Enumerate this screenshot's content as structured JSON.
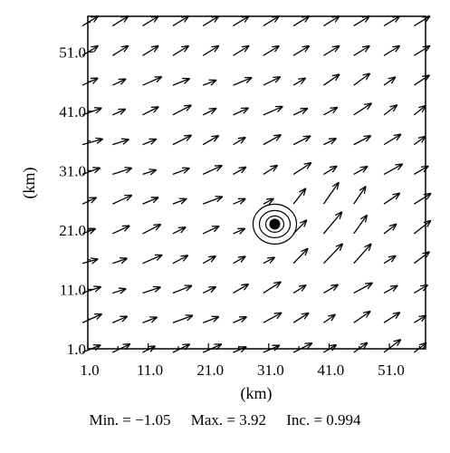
{
  "chart_data": {
    "type": "vector-field",
    "title": "",
    "xlabel": "(km)",
    "ylabel": "(km)",
    "xlim": [
      1.0,
      57.0
    ],
    "ylim": [
      1.0,
      57.0
    ],
    "x_ticks": [
      "1.0",
      "11.0",
      "21.0",
      "31.0",
      "41.0",
      "51.0"
    ],
    "y_ticks": [
      "1.0",
      "11.0",
      "21.0",
      "31.0",
      "41.0",
      "51.0"
    ],
    "grid": false,
    "contour_center": [
      32,
      22
    ],
    "stats": {
      "min": "Min. = −1.05",
      "max": "Max. = 3.92",
      "inc": "Inc. = 0.994"
    }
  }
}
